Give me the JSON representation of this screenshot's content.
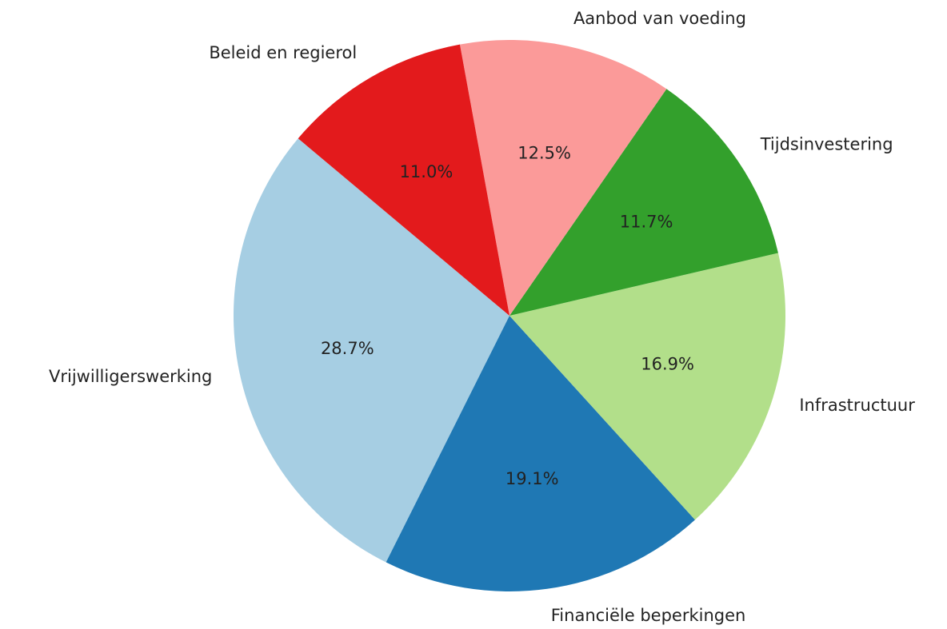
{
  "chart_data": {
    "type": "pie",
    "categories": [
      "Vrijwilligerswerking",
      "Financiële beperkingen",
      "Infrastructuur",
      "Tijdsinvestering",
      "Aanbod van voeding",
      "Beleid en regierol"
    ],
    "values": [
      28.7,
      19.1,
      16.9,
      11.7,
      12.5,
      11.0
    ],
    "value_labels": [
      "28.7%",
      "19.1%",
      "16.9%",
      "11.7%",
      "12.5%",
      "11.0%"
    ],
    "colors": [
      "#a6cee3",
      "#1f78b4",
      "#b2df8a",
      "#33a02c",
      "#fb9a99",
      "#e31a1c"
    ],
    "startangle": 140,
    "counterclock": true
  }
}
